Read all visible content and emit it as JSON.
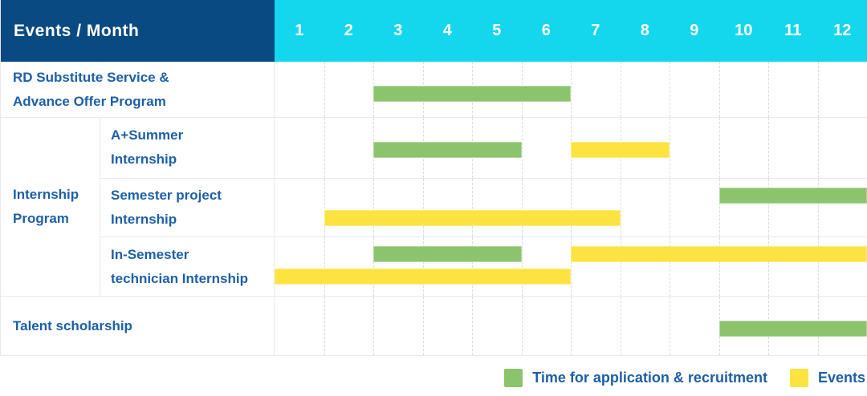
{
  "header": {
    "title": "Events / Month",
    "months": [
      "1",
      "2",
      "3",
      "4",
      "5",
      "6",
      "7",
      "8",
      "9",
      "10",
      "11",
      "12"
    ]
  },
  "table": {
    "row_labels": {
      "rd": [
        "RD Substitute Service &",
        "Advance Offer Program"
      ],
      "group": [
        "Internship",
        "Program"
      ],
      "summer": [
        "A+Summer",
        "Internship"
      ],
      "semester_project": [
        "Semester project",
        "Internship"
      ],
      "in_semester": [
        "In-Semester",
        "technician Internship"
      ],
      "talent": [
        "Talent scholarship"
      ]
    }
  },
  "legend": [
    {
      "name": "recruitment",
      "label": "Time for application & recruitment",
      "color": "#8cc46d"
    },
    {
      "name": "events",
      "label": "Events",
      "color": "#fde33f"
    }
  ],
  "colors": {
    "navy": "#0a4a82",
    "cyan": "#14d6ec",
    "label_blue": "#1d5fa8",
    "green": "#8cc46d",
    "yellow": "#fde33f",
    "grid": "#e9e9e9",
    "dashed": "#dcdcdc"
  },
  "chart_data": {
    "type": "bar",
    "subtype": "gantt-timeline",
    "title": "Events / Month",
    "x_axis": {
      "label": "Month",
      "ticks": [
        "1",
        "2",
        "3",
        "4",
        "5",
        "6",
        "7",
        "8",
        "9",
        "10",
        "11",
        "12"
      ],
      "range": [
        1,
        12
      ]
    },
    "grid": "dashed-vertical-month-lines",
    "legend_position": "bottom-right",
    "series_legend": [
      "Time for application & recruitment",
      "Events"
    ],
    "rows": [
      {
        "label": "RD Substitute Service & Advance Offer Program",
        "group": null,
        "bars": [
          {
            "series": "Time for application & recruitment",
            "color": "green",
            "start_month": 3,
            "end_month": 6,
            "line": "single"
          }
        ]
      },
      {
        "label": "A+Summer Internship",
        "group": "Internship Program",
        "bars": [
          {
            "series": "Time for application & recruitment",
            "color": "green",
            "start_month": 3,
            "end_month": 5,
            "line": "single"
          },
          {
            "series": "Events",
            "color": "yellow",
            "start_month": 7,
            "end_month": 8,
            "line": "single"
          }
        ]
      },
      {
        "label": "Semester project Internship",
        "group": "Internship Program",
        "bars": [
          {
            "series": "Time for application & recruitment",
            "color": "green",
            "start_month": 10,
            "end_month": 12,
            "line": "top"
          },
          {
            "series": "Events",
            "color": "yellow",
            "start_month": 2,
            "end_month": 7,
            "line": "bottom"
          }
        ]
      },
      {
        "label": "In-Semester technician Internship",
        "group": "Internship Program",
        "bars": [
          {
            "series": "Time for application & recruitment",
            "color": "green",
            "start_month": 3,
            "end_month": 5,
            "line": "top"
          },
          {
            "series": "Events",
            "color": "yellow",
            "start_month": 7,
            "end_month": 12,
            "line": "top"
          },
          {
            "series": "Events",
            "color": "yellow",
            "start_month": 1,
            "end_month": 6,
            "line": "bottom"
          }
        ]
      },
      {
        "label": "Talent scholarship",
        "group": null,
        "bars": [
          {
            "series": "Time for application & recruitment",
            "color": "green",
            "start_month": 10,
            "end_month": 12,
            "line": "single"
          }
        ]
      }
    ]
  }
}
